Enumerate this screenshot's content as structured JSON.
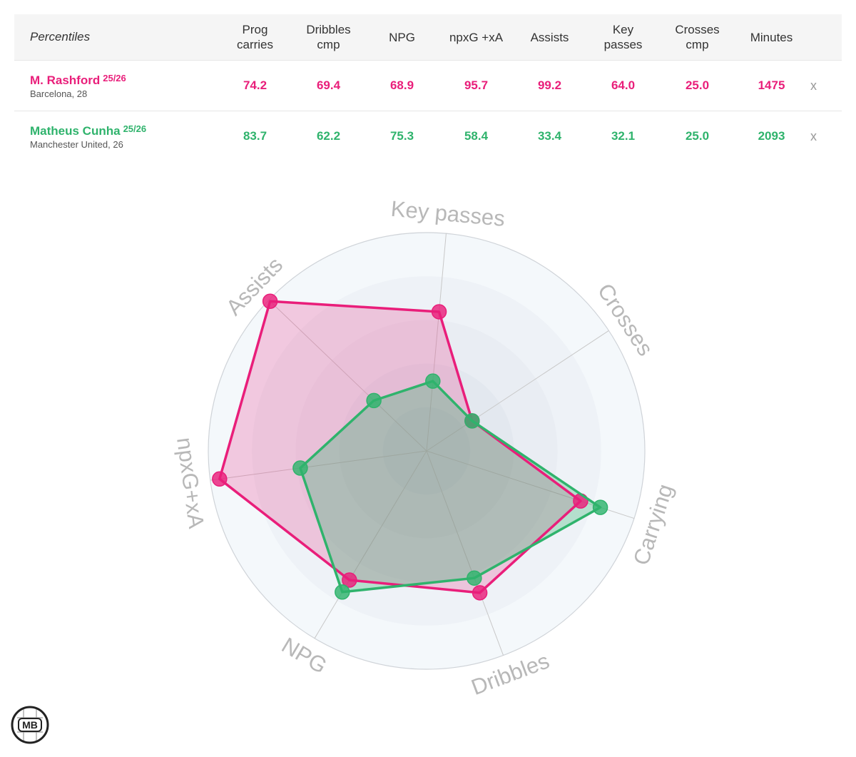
{
  "table": {
    "corner_label": "Percentiles",
    "columns": [
      [
        "Prog",
        "carries"
      ],
      [
        "Dribbles",
        "cmp"
      ],
      [
        "NPG"
      ],
      [
        "npxG +xA"
      ],
      [
        "Assists"
      ],
      [
        "Key",
        "passes"
      ],
      [
        "Crosses",
        "cmp"
      ],
      [
        "Minutes"
      ]
    ],
    "remove_label": "x",
    "players": [
      {
        "name": "M. Rashford",
        "season": "25/26",
        "info": "Barcelona, 28",
        "color": "#e91e7a",
        "values": [
          "74.2",
          "69.4",
          "68.9",
          "95.7",
          "99.2",
          "64.0",
          "25.0",
          "1475"
        ]
      },
      {
        "name": "Matheus Cunha",
        "season": "25/26",
        "info": "Manchester United, 26",
        "color": "#2fb36c",
        "values": [
          "83.7",
          "62.2",
          "75.3",
          "58.4",
          "33.4",
          "32.1",
          "25.0",
          "2093"
        ]
      }
    ]
  },
  "chart_data": {
    "type": "radar",
    "axes": [
      "Key passes",
      "Crosses",
      "Carrying",
      "Dribbles",
      "NPG",
      "npxG+xA",
      "Assists"
    ],
    "range": [
      0,
      100
    ],
    "grid_rings": 5,
    "series": [
      {
        "name": "M. Rashford",
        "color": "#e91e7a",
        "values": [
          64.0,
          25.0,
          74.2,
          69.4,
          68.9,
          95.7,
          99.2
        ]
      },
      {
        "name": "Matheus Cunha",
        "color": "#2fb36c",
        "values": [
          32.1,
          25.0,
          83.7,
          62.2,
          75.3,
          58.4,
          33.4
        ]
      }
    ]
  },
  "logo": {
    "text": "MB"
  }
}
